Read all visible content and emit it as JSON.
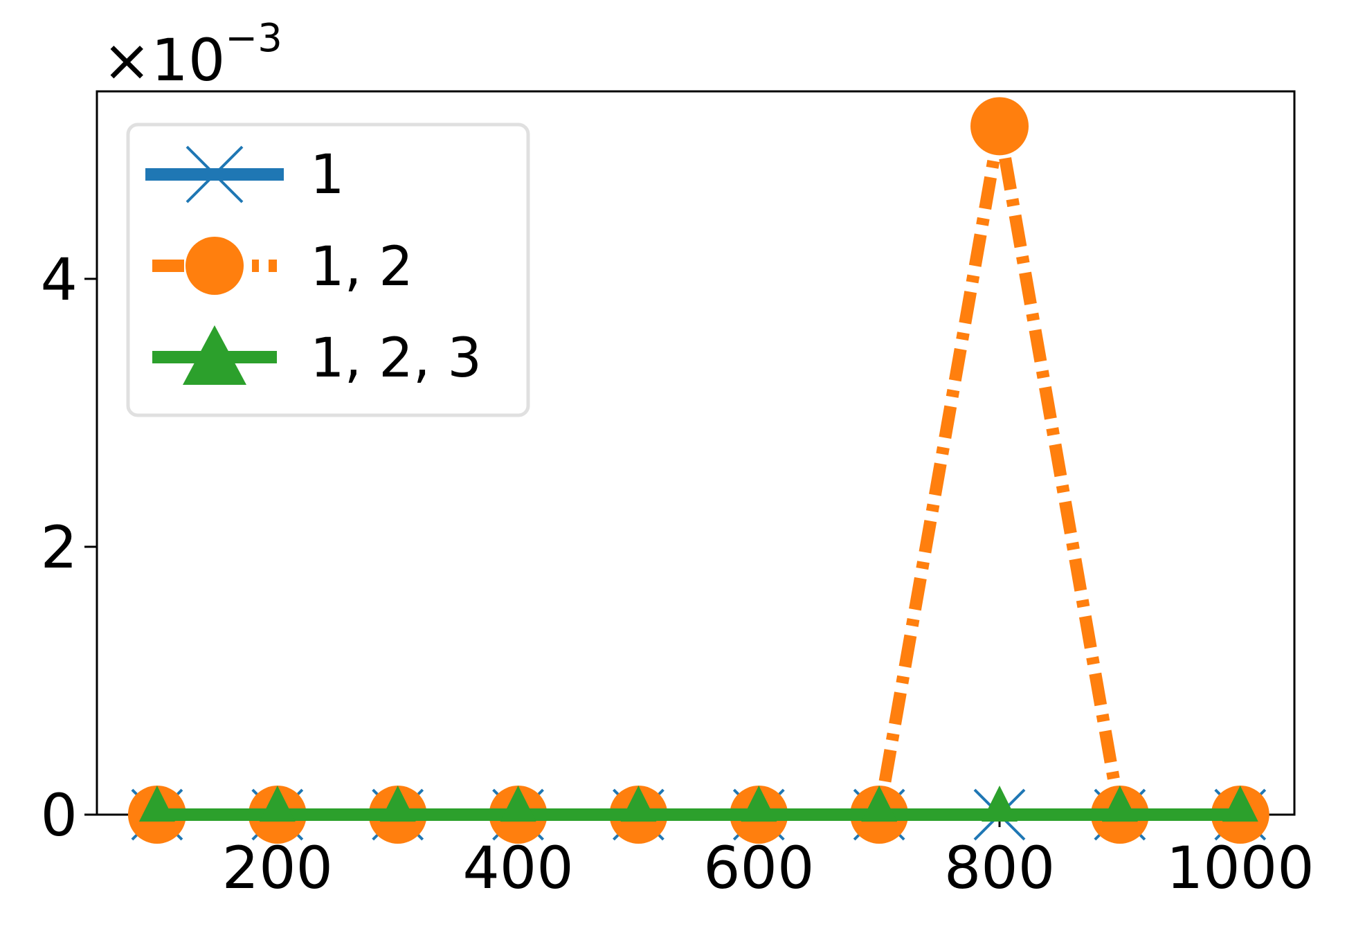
{
  "chart_data": {
    "type": "line",
    "x": [
      100,
      200,
      300,
      400,
      500,
      600,
      700,
      800,
      900,
      1000
    ],
    "xlim": [
      50,
      1045
    ],
    "ylim": [
      0,
      0.0054
    ],
    "x_ticks": [
      200,
      400,
      600,
      800,
      1000
    ],
    "y_ticks": [
      0,
      0.002,
      0.004
    ],
    "x_tick_labels": [
      "200",
      "400",
      "600",
      "800",
      "1000"
    ],
    "y_tick_labels": [
      "0",
      "2",
      "4"
    ],
    "y_offset_text": {
      "times": "×",
      "base": "10",
      "exponent": "−3"
    },
    "grid": false,
    "legend_position": "upper-left",
    "series": [
      {
        "name": "1",
        "color": "#1f77b4",
        "marker": "x",
        "linestyle": "solid",
        "values": [
          0,
          0,
          0,
          0,
          0,
          0,
          0,
          0,
          0,
          0
        ]
      },
      {
        "name": "1, 2",
        "color": "#ff7f0e",
        "marker": "circle",
        "linestyle": "dashed",
        "values": [
          0,
          0,
          0,
          0,
          0,
          0,
          0,
          0.00514,
          0,
          0
        ]
      },
      {
        "name": "1, 2, 3",
        "color": "#2ca02c",
        "marker": "triangle",
        "linestyle": "solid",
        "values": [
          0,
          0,
          0,
          0,
          0,
          0,
          0,
          0,
          0,
          0
        ]
      }
    ]
  }
}
